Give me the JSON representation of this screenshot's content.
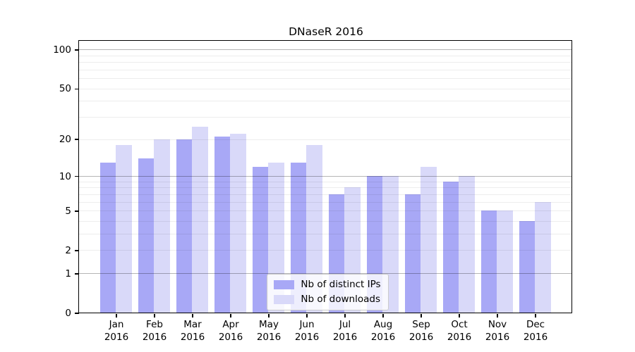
{
  "chart_data": {
    "type": "bar",
    "title": "DNaseR 2016",
    "categories": [
      "Jan",
      "Feb",
      "Mar",
      "Apr",
      "May",
      "Jun",
      "Jul",
      "Aug",
      "Sep",
      "Oct",
      "Nov",
      "Dec"
    ],
    "x_year_label": "2016",
    "series": [
      {
        "name": "Nb of distinct IPs",
        "color": "#a8a8f6",
        "values": [
          13,
          14,
          20,
          21,
          12,
          13,
          7,
          10,
          7,
          9,
          5,
          4
        ]
      },
      {
        "name": "Nb of downloads",
        "color": "#d9d9f9",
        "values": [
          18,
          20,
          25,
          22,
          13,
          18,
          8,
          10,
          12,
          10,
          5,
          6
        ]
      }
    ],
    "yscale": "log1p",
    "ylim": [
      0,
      116
    ],
    "ytick_values": [
      0,
      1,
      2,
      5,
      10,
      20,
      50,
      100
    ],
    "ytick_labels": [
      "0",
      "1",
      "2",
      "5",
      "10",
      "20",
      "50",
      "100"
    ],
    "major_gridlines": [
      1,
      10,
      100
    ],
    "minor_gridlines": [
      2,
      3,
      4,
      5,
      6,
      7,
      8,
      9,
      20,
      30,
      40,
      50,
      60,
      70,
      80,
      90
    ],
    "grid": "on",
    "grid_above_bars": true,
    "legend_position": "lower center",
    "colors": {
      "major_grid": "rgba(0,0,0,0.29)",
      "minor_grid": "rgba(0,0,0,0.07)",
      "axis": "#000000",
      "background": "#ffffff"
    }
  }
}
